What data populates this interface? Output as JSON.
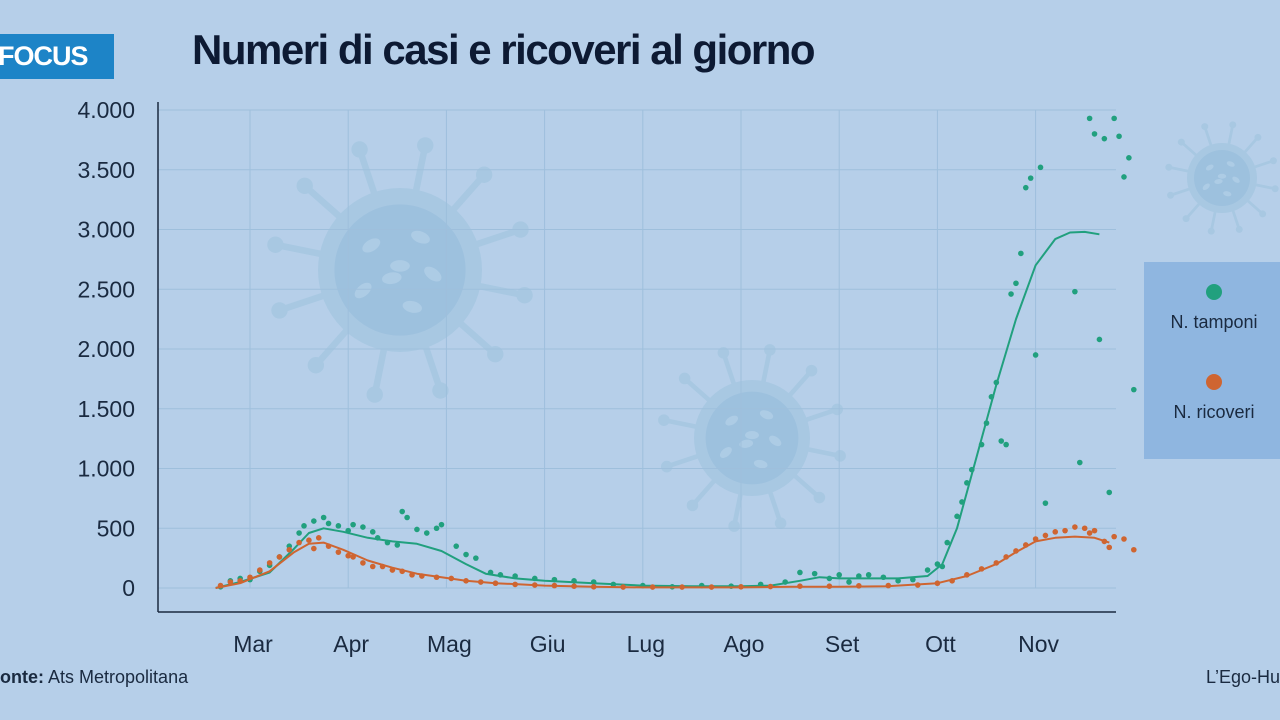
{
  "badge": "FOCUS",
  "footer": {
    "source_label": "onte:",
    "source_value": "Ats Metropolitana",
    "credit": "L’Ego-Hu"
  },
  "colors": {
    "tamponi": "#21a07e",
    "ricoveri": "#cf6531",
    "background": "#b6cfe9",
    "legend_bg": "#8fb6e0",
    "badge_bg": "#1d84c7"
  },
  "icons": [
    "virus-icon-large",
    "virus-icon-small",
    "virus-icon-corner"
  ],
  "chart_data": {
    "type": "scatter",
    "title": "Numeri di casi e ricoveri al giorno",
    "xlabel": "",
    "ylabel": "",
    "ylim": [
      0,
      4000
    ],
    "yticks": [
      0,
      500,
      1000,
      1500,
      2000,
      2500,
      3000,
      3500,
      4000
    ],
    "ytick_labels": [
      "0",
      "500",
      "1.000",
      "1.500",
      "2.000",
      "2.500",
      "3.000",
      "3.500",
      "4.000"
    ],
    "xlim": [
      -0.35,
      8.8
    ],
    "categories": [
      "Mar",
      "Apr",
      "Mag",
      "Giu",
      "Lug",
      "Ago",
      "Set",
      "Ott",
      "Nov"
    ],
    "grid": true,
    "legend_position": "right",
    "series": [
      {
        "name": "N. tamponi",
        "color": "#21a07e",
        "trend": [
          [
            -0.35,
            0
          ],
          [
            -0.1,
            50
          ],
          [
            0.2,
            130
          ],
          [
            0.45,
            330
          ],
          [
            0.6,
            460
          ],
          [
            0.75,
            500
          ],
          [
            0.95,
            470
          ],
          [
            1.2,
            420
          ],
          [
            1.45,
            390
          ],
          [
            1.7,
            370
          ],
          [
            1.95,
            310
          ],
          [
            2.2,
            200
          ],
          [
            2.4,
            120
          ],
          [
            2.7,
            80
          ],
          [
            3.0,
            60
          ],
          [
            3.5,
            40
          ],
          [
            4.0,
            20
          ],
          [
            4.5,
            15
          ],
          [
            5.0,
            15
          ],
          [
            5.3,
            20
          ],
          [
            5.6,
            60
          ],
          [
            5.8,
            90
          ],
          [
            6.0,
            80
          ],
          [
            6.3,
            80
          ],
          [
            6.6,
            80
          ],
          [
            6.9,
            100
          ],
          [
            7.05,
            200
          ],
          [
            7.2,
            500
          ],
          [
            7.4,
            1100
          ],
          [
            7.6,
            1700
          ],
          [
            7.8,
            2250
          ],
          [
            8.0,
            2700
          ],
          [
            8.2,
            2920
          ],
          [
            8.35,
            2975
          ],
          [
            8.5,
            2980
          ],
          [
            8.65,
            2960
          ]
        ],
        "points": [
          [
            -0.3,
            10
          ],
          [
            -0.2,
            60
          ],
          [
            -0.1,
            80
          ],
          [
            0.0,
            70
          ],
          [
            0.1,
            140
          ],
          [
            0.2,
            190
          ],
          [
            0.3,
            260
          ],
          [
            0.4,
            350
          ],
          [
            0.5,
            460
          ],
          [
            0.55,
            520
          ],
          [
            0.65,
            560
          ],
          [
            0.75,
            590
          ],
          [
            0.8,
            540
          ],
          [
            0.9,
            520
          ],
          [
            1.0,
            480
          ],
          [
            1.05,
            530
          ],
          [
            1.15,
            510
          ],
          [
            1.25,
            470
          ],
          [
            1.3,
            420
          ],
          [
            1.4,
            380
          ],
          [
            1.5,
            360
          ],
          [
            1.55,
            640
          ],
          [
            1.6,
            590
          ],
          [
            1.7,
            490
          ],
          [
            1.8,
            460
          ],
          [
            1.9,
            500
          ],
          [
            1.95,
            530
          ],
          [
            2.1,
            350
          ],
          [
            2.2,
            280
          ],
          [
            2.3,
            250
          ],
          [
            2.45,
            130
          ],
          [
            2.55,
            110
          ],
          [
            2.7,
            100
          ],
          [
            2.9,
            80
          ],
          [
            3.1,
            70
          ],
          [
            3.3,
            60
          ],
          [
            3.5,
            50
          ],
          [
            3.7,
            30
          ],
          [
            4.0,
            20
          ],
          [
            4.3,
            10
          ],
          [
            4.6,
            20
          ],
          [
            4.9,
            15
          ],
          [
            5.2,
            30
          ],
          [
            5.45,
            50
          ],
          [
            5.6,
            130
          ],
          [
            5.75,
            120
          ],
          [
            5.9,
            80
          ],
          [
            6.0,
            110
          ],
          [
            6.1,
            50
          ],
          [
            6.2,
            100
          ],
          [
            6.3,
            110
          ],
          [
            6.45,
            90
          ],
          [
            6.6,
            60
          ],
          [
            6.75,
            70
          ],
          [
            6.9,
            150
          ],
          [
            7.0,
            200
          ],
          [
            7.05,
            180
          ],
          [
            7.1,
            380
          ],
          [
            7.2,
            600
          ],
          [
            7.25,
            720
          ],
          [
            7.3,
            880
          ],
          [
            7.35,
            990
          ],
          [
            7.45,
            1200
          ],
          [
            7.5,
            1380
          ],
          [
            7.55,
            1600
          ],
          [
            7.6,
            1720
          ],
          [
            7.65,
            1230
          ],
          [
            7.7,
            1200
          ],
          [
            7.75,
            2460
          ],
          [
            7.8,
            2550
          ],
          [
            7.85,
            2800
          ],
          [
            7.9,
            3350
          ],
          [
            7.95,
            3430
          ],
          [
            8.0,
            1950
          ],
          [
            8.05,
            3520
          ],
          [
            8.1,
            710
          ],
          [
            8.4,
            2480
          ],
          [
            8.45,
            1050
          ],
          [
            8.55,
            3930
          ],
          [
            8.6,
            3800
          ],
          [
            8.65,
            2080
          ],
          [
            8.7,
            3760
          ],
          [
            8.75,
            800
          ],
          [
            8.8,
            3930
          ],
          [
            8.85,
            3780
          ],
          [
            8.9,
            3440
          ],
          [
            8.95,
            3600
          ],
          [
            9.0,
            1660
          ]
        ]
      },
      {
        "name": "N. ricoveri",
        "color": "#cf6531",
        "trend": [
          [
            -0.35,
            0
          ],
          [
            -0.1,
            40
          ],
          [
            0.2,
            140
          ],
          [
            0.45,
            300
          ],
          [
            0.6,
            370
          ],
          [
            0.75,
            380
          ],
          [
            0.95,
            320
          ],
          [
            1.2,
            230
          ],
          [
            1.45,
            170
          ],
          [
            1.7,
            120
          ],
          [
            1.95,
            90
          ],
          [
            2.2,
            60
          ],
          [
            2.5,
            40
          ],
          [
            3.0,
            20
          ],
          [
            3.5,
            10
          ],
          [
            4.0,
            5
          ],
          [
            4.5,
            5
          ],
          [
            5.0,
            5
          ],
          [
            5.5,
            10
          ],
          [
            6.0,
            10
          ],
          [
            6.5,
            15
          ],
          [
            7.0,
            40
          ],
          [
            7.3,
            100
          ],
          [
            7.6,
            200
          ],
          [
            7.8,
            300
          ],
          [
            8.0,
            390
          ],
          [
            8.2,
            420
          ],
          [
            8.4,
            430
          ],
          [
            8.6,
            420
          ],
          [
            8.75,
            380
          ]
        ],
        "points": [
          [
            -0.3,
            20
          ],
          [
            -0.2,
            50
          ],
          [
            -0.1,
            60
          ],
          [
            0.0,
            90
          ],
          [
            0.1,
            150
          ],
          [
            0.2,
            210
          ],
          [
            0.3,
            260
          ],
          [
            0.4,
            320
          ],
          [
            0.5,
            380
          ],
          [
            0.6,
            400
          ],
          [
            0.65,
            330
          ],
          [
            0.7,
            420
          ],
          [
            0.8,
            350
          ],
          [
            0.9,
            300
          ],
          [
            1.0,
            270
          ],
          [
            1.05,
            260
          ],
          [
            1.15,
            210
          ],
          [
            1.25,
            180
          ],
          [
            1.35,
            180
          ],
          [
            1.45,
            150
          ],
          [
            1.55,
            140
          ],
          [
            1.65,
            110
          ],
          [
            1.75,
            100
          ],
          [
            1.9,
            90
          ],
          [
            2.05,
            80
          ],
          [
            2.2,
            60
          ],
          [
            2.35,
            50
          ],
          [
            2.5,
            40
          ],
          [
            2.7,
            30
          ],
          [
            2.9,
            25
          ],
          [
            3.1,
            20
          ],
          [
            3.3,
            15
          ],
          [
            3.5,
            10
          ],
          [
            3.8,
            8
          ],
          [
            4.1,
            8
          ],
          [
            4.4,
            8
          ],
          [
            4.7,
            8
          ],
          [
            5.0,
            10
          ],
          [
            5.3,
            12
          ],
          [
            5.6,
            15
          ],
          [
            5.9,
            15
          ],
          [
            6.2,
            18
          ],
          [
            6.5,
            20
          ],
          [
            6.8,
            25
          ],
          [
            7.0,
            40
          ],
          [
            7.15,
            60
          ],
          [
            7.3,
            110
          ],
          [
            7.45,
            160
          ],
          [
            7.6,
            210
          ],
          [
            7.7,
            260
          ],
          [
            7.8,
            310
          ],
          [
            7.9,
            360
          ],
          [
            8.0,
            410
          ],
          [
            8.1,
            440
          ],
          [
            8.2,
            470
          ],
          [
            8.3,
            480
          ],
          [
            8.4,
            510
          ],
          [
            8.5,
            500
          ],
          [
            8.55,
            460
          ],
          [
            8.6,
            480
          ],
          [
            8.7,
            390
          ],
          [
            8.75,
            340
          ],
          [
            8.8,
            430
          ],
          [
            8.9,
            410
          ],
          [
            9.0,
            320
          ]
        ]
      }
    ]
  }
}
